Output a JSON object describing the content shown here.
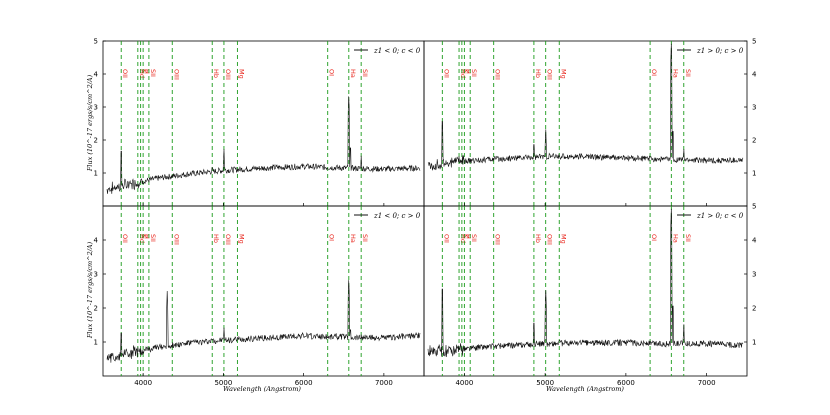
{
  "chart_data": {
    "type": "line",
    "xlabel": "Wavelength (Angstrom)",
    "ylabel": "Flux (10^-17 ergs/s/cm^2/A)",
    "xlim": [
      3500,
      7500
    ],
    "ylim": [
      0,
      5
    ],
    "x_ticks": [
      "4000",
      "5000",
      "6000",
      "7000"
    ],
    "y_ticks": [
      "1",
      "2",
      "3",
      "4",
      "5"
    ],
    "grid": false,
    "legend_position": "top-right",
    "spectral_lines": [
      {
        "label": "OII",
        "x": 3727
      },
      {
        "label": "Hd",
        "x": 3934
      },
      {
        "label": "K",
        "x": 3969
      },
      {
        "label": "H",
        "x": 4000
      },
      {
        "label": "SII",
        "x": 4072
      },
      {
        "label": "OIII",
        "x": 4363
      },
      {
        "label": "Hb",
        "x": 4861
      },
      {
        "label": "OIII",
        "x": 5007
      },
      {
        "label": "Mg",
        "x": 5175
      },
      {
        "label": "OI",
        "x": 6300
      },
      {
        "label": "Ha",
        "x": 6563
      },
      {
        "label": "SII",
        "x": 6717
      }
    ],
    "panels": [
      {
        "legend": "z1 < 0; c < 0",
        "y_axis_side": "left",
        "y_ticks_shown": [
          "1",
          "2",
          "3",
          "4",
          "5"
        ],
        "continuum": [
          [
            3550,
            0.5
          ],
          [
            3800,
            0.65
          ],
          [
            4000,
            0.75
          ],
          [
            4200,
            0.85
          ],
          [
            4600,
            0.98
          ],
          [
            5000,
            1.08
          ],
          [
            5500,
            1.15
          ],
          [
            6000,
            1.2
          ],
          [
            6500,
            1.15
          ],
          [
            7000,
            1.12
          ],
          [
            7450,
            1.15
          ]
        ],
        "peaks": [
          [
            3727,
            1.9
          ],
          [
            4861,
            1.4
          ],
          [
            5007,
            1.8
          ],
          [
            6563,
            3.4
          ],
          [
            6583,
            2.0
          ],
          [
            6717,
            1.6
          ]
        ]
      },
      {
        "legend": "z1 > 0; c > 0",
        "y_axis_side": "right",
        "y_ticks_shown": [
          "1",
          "2",
          "3",
          "4",
          "5"
        ],
        "continuum": [
          [
            3550,
            1.2
          ],
          [
            3800,
            1.3
          ],
          [
            4000,
            1.35
          ],
          [
            4200,
            1.4
          ],
          [
            4600,
            1.45
          ],
          [
            5000,
            1.5
          ],
          [
            5500,
            1.5
          ],
          [
            6000,
            1.45
          ],
          [
            6500,
            1.42
          ],
          [
            7000,
            1.38
          ],
          [
            7450,
            1.38
          ]
        ],
        "peaks": [
          [
            3727,
            2.8
          ],
          [
            4861,
            2.1
          ],
          [
            5007,
            2.4
          ],
          [
            6563,
            5.0
          ],
          [
            6583,
            2.5
          ],
          [
            6717,
            1.8
          ]
        ]
      },
      {
        "legend": "z1 < 0; c > 0",
        "y_axis_side": "left",
        "y_ticks_shown": [
          "1",
          "2",
          "3",
          "4"
        ],
        "continuum": [
          [
            3550,
            0.5
          ],
          [
            3800,
            0.65
          ],
          [
            4000,
            0.75
          ],
          [
            4200,
            0.85
          ],
          [
            4600,
            0.98
          ],
          [
            5000,
            1.05
          ],
          [
            5500,
            1.12
          ],
          [
            6000,
            1.18
          ],
          [
            6500,
            1.15
          ],
          [
            7000,
            1.12
          ],
          [
            7450,
            1.2
          ]
        ],
        "peaks": [
          [
            3727,
            1.5
          ],
          [
            4300,
            2.5
          ],
          [
            4861,
            1.3
          ],
          [
            5007,
            1.5
          ],
          [
            6563,
            2.9
          ],
          [
            6583,
            1.6
          ],
          [
            6717,
            1.3
          ]
        ]
      },
      {
        "legend": "z1 > 0; c < 0",
        "y_axis_side": "right",
        "y_ticks_shown": [
          "1",
          "2",
          "3",
          "4",
          "5"
        ],
        "continuum": [
          [
            3550,
            0.7
          ],
          [
            3800,
            0.75
          ],
          [
            4000,
            0.8
          ],
          [
            4200,
            0.85
          ],
          [
            4600,
            0.9
          ],
          [
            5000,
            0.95
          ],
          [
            5500,
            0.98
          ],
          [
            6000,
            0.98
          ],
          [
            6500,
            0.95
          ],
          [
            7000,
            0.95
          ],
          [
            7450,
            0.9
          ]
        ],
        "peaks": [
          [
            3727,
            2.8
          ],
          [
            4861,
            1.8
          ],
          [
            5007,
            2.6
          ],
          [
            6563,
            5.0
          ],
          [
            6583,
            2.3
          ],
          [
            6717,
            1.6
          ]
        ]
      }
    ]
  }
}
